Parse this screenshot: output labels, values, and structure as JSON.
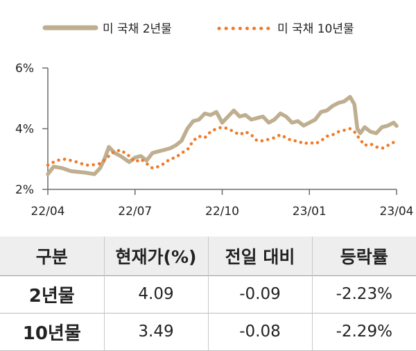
{
  "legend": {
    "series1": "미 국채 2년물",
    "series2": "미 국채 10년물"
  },
  "colors": {
    "series1": "#bfae8f",
    "series2": "#f07a27",
    "axis": "#6a6a6a"
  },
  "chart_data": {
    "type": "line",
    "xlabel": "",
    "ylabel": "",
    "ylim": [
      2,
      6
    ],
    "xlim": [
      0,
      12
    ],
    "x_ticks": [
      {
        "pos": 0,
        "label": "22/04"
      },
      {
        "pos": 3,
        "label": "22/07"
      },
      {
        "pos": 6,
        "label": "22/10"
      },
      {
        "pos": 9,
        "label": "23/01"
      },
      {
        "pos": 12,
        "label": "23/04"
      }
    ],
    "y_ticks": [
      {
        "value": 2,
        "label": "2%"
      },
      {
        "value": 4,
        "label": "4%"
      },
      {
        "value": 6,
        "label": "6%"
      }
    ],
    "series": [
      {
        "name": "미 국채 2년물",
        "style": "solid",
        "x": [
          0,
          0.2,
          0.5,
          0.8,
          1.0,
          1.3,
          1.6,
          1.8,
          1.95,
          2.1,
          2.3,
          2.5,
          2.8,
          3.0,
          3.2,
          3.4,
          3.6,
          3.8,
          4.0,
          4.2,
          4.4,
          4.6,
          4.8,
          5.0,
          5.2,
          5.4,
          5.6,
          5.8,
          6.0,
          6.2,
          6.4,
          6.6,
          6.8,
          7.0,
          7.2,
          7.4,
          7.6,
          7.8,
          8.0,
          8.2,
          8.4,
          8.6,
          8.8,
          9.0,
          9.2,
          9.4,
          9.6,
          9.8,
          10.0,
          10.2,
          10.4,
          10.55,
          10.65,
          10.75,
          10.9,
          11.1,
          11.3,
          11.5,
          11.7,
          11.9,
          12.0
        ],
        "y": [
          2.5,
          2.75,
          2.7,
          2.6,
          2.58,
          2.55,
          2.5,
          2.7,
          3.0,
          3.4,
          3.2,
          3.1,
          2.9,
          3.05,
          3.1,
          2.95,
          3.2,
          3.25,
          3.3,
          3.35,
          3.45,
          3.6,
          4.0,
          4.25,
          4.3,
          4.5,
          4.45,
          4.55,
          4.2,
          4.4,
          4.6,
          4.4,
          4.45,
          4.3,
          4.35,
          4.4,
          4.2,
          4.3,
          4.5,
          4.4,
          4.2,
          4.25,
          4.1,
          4.2,
          4.3,
          4.55,
          4.6,
          4.75,
          4.85,
          4.9,
          5.05,
          4.8,
          4.0,
          3.85,
          4.05,
          3.9,
          3.85,
          4.05,
          4.1,
          4.2,
          4.09
        ]
      },
      {
        "name": "미 국채 10년물",
        "style": "dotted",
        "x": [
          0,
          0.3,
          0.6,
          1.0,
          1.3,
          1.5,
          1.8,
          2.0,
          2.2,
          2.5,
          2.8,
          3.0,
          3.2,
          3.4,
          3.6,
          3.8,
          4.0,
          4.2,
          4.4,
          4.6,
          4.8,
          5.0,
          5.2,
          5.4,
          5.6,
          5.8,
          6.0,
          6.2,
          6.4,
          6.6,
          6.8,
          7.0,
          7.2,
          7.4,
          7.6,
          7.8,
          8.0,
          8.2,
          8.4,
          8.6,
          8.8,
          9.0,
          9.2,
          9.4,
          9.6,
          9.8,
          10.0,
          10.2,
          10.4,
          10.55,
          10.7,
          10.9,
          11.1,
          11.3,
          11.5,
          11.7,
          11.9,
          12.0
        ],
        "y": [
          2.8,
          2.95,
          3.0,
          2.9,
          2.8,
          2.8,
          2.85,
          3.0,
          3.2,
          3.3,
          3.1,
          2.9,
          3.0,
          2.85,
          2.7,
          2.75,
          2.85,
          3.0,
          3.05,
          3.2,
          3.3,
          3.6,
          3.75,
          3.7,
          3.9,
          4.0,
          4.05,
          4.0,
          3.9,
          3.8,
          3.9,
          3.8,
          3.6,
          3.6,
          3.65,
          3.7,
          3.8,
          3.7,
          3.6,
          3.6,
          3.5,
          3.55,
          3.5,
          3.6,
          3.75,
          3.8,
          3.9,
          3.95,
          4.0,
          3.9,
          3.7,
          3.45,
          3.5,
          3.4,
          3.35,
          3.45,
          3.55,
          3.49
        ]
      }
    ]
  },
  "table": {
    "headers": [
      "구분",
      "현재가(%)",
      "전일 대비",
      "등락률"
    ],
    "rows": [
      [
        "2년물",
        "4.09",
        "-0.09",
        "-2.23%"
      ],
      [
        "10년물",
        "3.49",
        "-0.08",
        "-2.29%"
      ]
    ]
  }
}
